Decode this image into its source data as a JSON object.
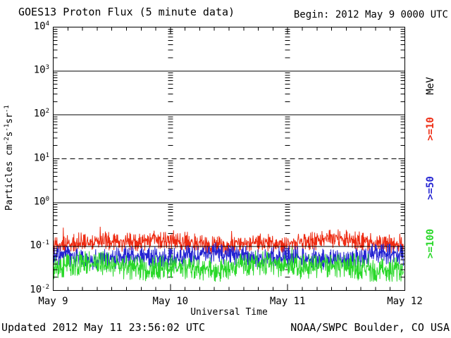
{
  "header": {
    "title": "GOES13 Proton Flux (5 minute data)",
    "begin_label": "Begin: 2012 May 9 0000 UTC"
  },
  "footer": {
    "updated_label": "Updated 2012 May 11 23:56:02 UTC",
    "source_label": "NOAA/SWPC Boulder, CO USA"
  },
  "chart_data": {
    "type": "line",
    "title": "GOES13 Proton Flux (5 minute data)",
    "xlabel": "Universal Time",
    "ylabel": "Particles cm⁻²s⁻¹sr⁻¹",
    "ylabel_parts": [
      "Particles cm",
      "-2",
      "s",
      "-1",
      "sr",
      "-1"
    ],
    "right_axis_label": "MeV",
    "x_ticks": [
      "May 9",
      "May 10",
      "May 11",
      "May 12"
    ],
    "x_minor_tick_hours": 3,
    "y_tick_exponents": [
      4,
      3,
      2,
      1,
      0,
      -1,
      -2
    ],
    "ylim_log10": [
      -2,
      4
    ],
    "grid": "horizontal solid lines at 10^3,10^2,10^0,10^-1; dashed threshold at 10^1; log minor tick columns at day boundaries",
    "solid_gridline_exponents": [
      3,
      2,
      0,
      -1
    ],
    "dashed_threshold_exponent": 1,
    "days": 3,
    "points_per_day": 288,
    "legend_position": "right-rotated",
    "axis_color": "#000000",
    "background_color": "#ffffff",
    "series": [
      {
        "name": ">=10 MeV proton flux",
        "label": ">=10",
        "color": "#ee2b12",
        "approx_flux_range": [
          0.07,
          0.2
        ],
        "spikes_to_flux": 0.38,
        "base_log": -1.13,
        "range_log": 0.45,
        "spike_chance": 0.012,
        "spike_log": 0.3,
        "max_log": -0.42
      },
      {
        "name": ">=50 MeV proton flux",
        "label": ">=50",
        "color": "#2424d2",
        "approx_flux_range": [
          0.033,
          0.1
        ],
        "spikes_to_flux": 0.15,
        "base_log": -1.48,
        "range_log": 0.5,
        "spike_chance": 0.01,
        "spike_log": 0.22,
        "max_log": -0.82
      },
      {
        "name": ">=100 MeV proton flux",
        "label": ">=100",
        "color": "#2ad82a",
        "approx_flux_range": [
          0.018,
          0.068
        ],
        "spikes_to_flux": 0.1,
        "base_log": -1.75,
        "range_log": 0.58,
        "spike_chance": 0.01,
        "spike_log": 0.25,
        "max_log": -1.0
      }
    ]
  }
}
